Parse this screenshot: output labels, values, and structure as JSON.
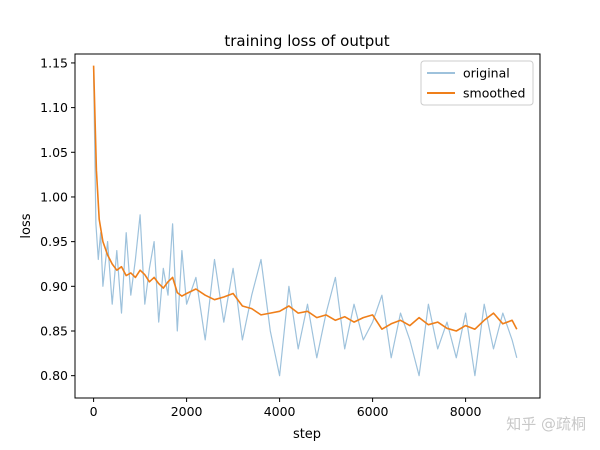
{
  "chart_data": {
    "type": "line",
    "title": "training loss of output",
    "xlabel": "step",
    "ylabel": "loss",
    "xlim": [
      -400,
      9600
    ],
    "ylim": [
      0.775,
      1.16
    ],
    "x_ticks": [
      0,
      2000,
      4000,
      6000,
      8000
    ],
    "y_ticks": [
      0.8,
      0.85,
      0.9,
      0.95,
      1.0,
      1.05,
      1.1,
      1.15
    ],
    "x_tick_labels": [
      "0",
      "2000",
      "4000",
      "6000",
      "8000"
    ],
    "y_tick_labels": [
      "0.80",
      "0.85",
      "0.90",
      "0.95",
      "1.00",
      "1.05",
      "1.10",
      "1.15"
    ],
    "legend_position": "top-right",
    "grid": false,
    "series": [
      {
        "name": "original",
        "color": "#9ec2dc",
        "x": [
          0,
          50,
          100,
          150,
          200,
          300,
          400,
          500,
          600,
          700,
          800,
          900,
          1000,
          1100,
          1200,
          1300,
          1400,
          1500,
          1600,
          1700,
          1800,
          1900,
          2000,
          2200,
          2400,
          2600,
          2800,
          3000,
          3200,
          3400,
          3600,
          3800,
          4000,
          4200,
          4400,
          4600,
          4800,
          5000,
          5200,
          5400,
          5600,
          5800,
          6000,
          6200,
          6400,
          6600,
          6800,
          7000,
          7200,
          7400,
          7600,
          7800,
          8000,
          8200,
          8400,
          8600,
          8800,
          9000,
          9100
        ],
        "y": [
          1.14,
          0.97,
          0.93,
          0.96,
          0.9,
          0.95,
          0.88,
          0.94,
          0.87,
          0.96,
          0.89,
          0.93,
          0.98,
          0.88,
          0.92,
          0.95,
          0.86,
          0.92,
          0.89,
          0.97,
          0.85,
          0.94,
          0.88,
          0.91,
          0.84,
          0.93,
          0.86,
          0.92,
          0.84,
          0.89,
          0.93,
          0.85,
          0.8,
          0.9,
          0.83,
          0.88,
          0.82,
          0.87,
          0.91,
          0.83,
          0.88,
          0.84,
          0.86,
          0.89,
          0.82,
          0.87,
          0.84,
          0.8,
          0.88,
          0.83,
          0.86,
          0.82,
          0.87,
          0.8,
          0.88,
          0.83,
          0.87,
          0.84,
          0.82
        ]
      },
      {
        "name": "smoothed",
        "color": "#ef7f1a",
        "x": [
          0,
          60,
          120,
          200,
          300,
          400,
          500,
          600,
          700,
          800,
          900,
          1000,
          1100,
          1200,
          1300,
          1400,
          1500,
          1600,
          1700,
          1800,
          1900,
          2000,
          2200,
          2400,
          2600,
          2800,
          3000,
          3200,
          3400,
          3600,
          3800,
          4000,
          4200,
          4400,
          4600,
          4800,
          5000,
          5200,
          5400,
          5600,
          5800,
          6000,
          6200,
          6400,
          6600,
          6800,
          7000,
          7200,
          7400,
          7600,
          7800,
          8000,
          8200,
          8400,
          8600,
          8800,
          9000,
          9100
        ],
        "y": [
          1.147,
          1.03,
          0.975,
          0.95,
          0.935,
          0.925,
          0.918,
          0.922,
          0.912,
          0.915,
          0.91,
          0.918,
          0.913,
          0.905,
          0.91,
          0.903,
          0.898,
          0.905,
          0.91,
          0.893,
          0.889,
          0.892,
          0.897,
          0.89,
          0.885,
          0.888,
          0.892,
          0.878,
          0.875,
          0.868,
          0.87,
          0.872,
          0.878,
          0.87,
          0.872,
          0.865,
          0.868,
          0.862,
          0.866,
          0.86,
          0.865,
          0.868,
          0.852,
          0.858,
          0.862,
          0.856,
          0.865,
          0.857,
          0.86,
          0.853,
          0.85,
          0.856,
          0.852,
          0.862,
          0.87,
          0.858,
          0.862,
          0.852
        ]
      }
    ]
  },
  "watermark": "知乎 @疏桐"
}
